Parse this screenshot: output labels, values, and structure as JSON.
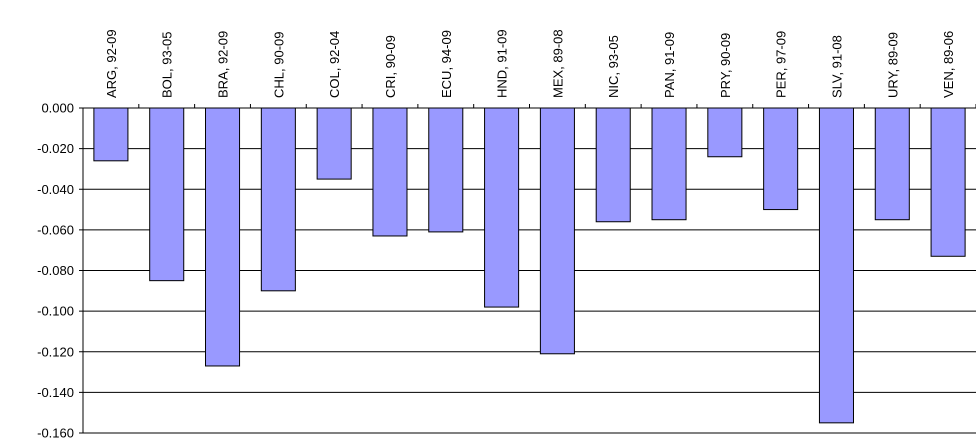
{
  "chart_data": {
    "type": "bar",
    "categories": [
      "ARG, 92-09",
      "BOL, 93-05",
      "BRA, 92-09",
      "CHL, 90-09",
      "COL, 92-04",
      "CRI, 90-09",
      "ECU, 94-09",
      "HND, 91-09",
      "MEX, 89-08",
      "NIC, 93-05",
      "PAN, 91-09",
      "PRY, 90-09",
      "PER, 97-09",
      "SLV, 91-08",
      "URY, 89-09",
      "VEN, 89-06"
    ],
    "values": [
      -0.026,
      -0.085,
      -0.127,
      -0.09,
      -0.035,
      -0.063,
      -0.061,
      -0.098,
      -0.121,
      -0.056,
      -0.055,
      -0.024,
      -0.05,
      -0.155,
      -0.055,
      -0.073
    ],
    "yticks": [
      "0.000",
      "-0.020",
      "-0.040",
      "-0.060",
      "-0.080",
      "-0.100",
      "-0.120",
      "-0.140",
      "-0.160"
    ],
    "ylim": [
      -0.16,
      0.0
    ],
    "title": "",
    "xlabel": "",
    "ylabel": "",
    "grid": true,
    "bar_color": "#9999FF",
    "category_label_position": "top"
  }
}
